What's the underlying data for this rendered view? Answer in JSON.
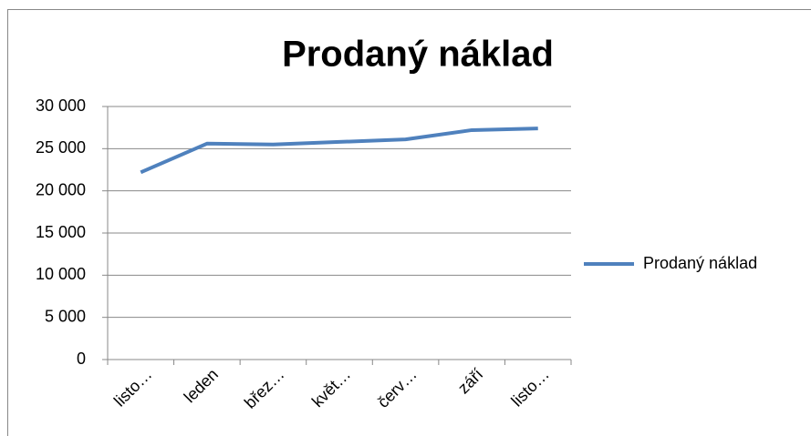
{
  "chart_data": {
    "type": "line",
    "title": "Prodaný náklad",
    "categories": [
      "listo…",
      "leden",
      "břez…",
      "květ…",
      "červ…",
      "září",
      "listo…"
    ],
    "series": [
      {
        "name": "Prodaný náklad",
        "color": "#4f81bd",
        "values": [
          22200,
          25600,
          25500,
          25800,
          26100,
          27200,
          27400
        ]
      }
    ],
    "ylim": [
      0,
      30000
    ],
    "yticks": [
      0,
      {
        "value": 5000,
        "label": "5 000"
      },
      {
        "value": 10000,
        "label": "10 000"
      },
      {
        "value": 15000,
        "label": "15 000"
      },
      {
        "value": 20000,
        "label": "20 000"
      },
      {
        "value": 25000,
        "label": "25 000"
      },
      {
        "value": 30000,
        "label": "30 000"
      }
    ],
    "grid": true,
    "legend": "right"
  }
}
